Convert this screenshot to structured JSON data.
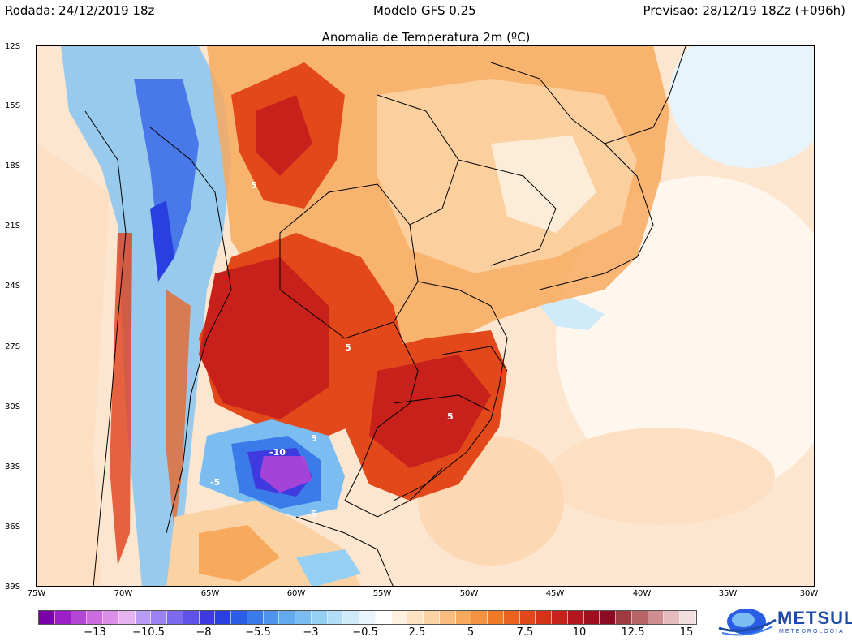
{
  "header": {
    "left": "Rodada: 24/12/2019 18z",
    "center": "Modelo GFS 0.25",
    "right": "Previsao: 28/12/19 18Zz (+096h)"
  },
  "title": "Anomalia de Temperatura 2m (ºC)",
  "lat_labels": [
    "12S",
    "15S",
    "18S",
    "21S",
    "24S",
    "27S",
    "30S",
    "33S",
    "36S",
    "39S"
  ],
  "lon_labels": [
    "75W",
    "70W",
    "65W",
    "60W",
    "55W",
    "50W",
    "45W",
    "40W",
    "35W",
    "30W"
  ],
  "colorbar": {
    "labels": [
      "−13",
      "−10.5",
      "−8",
      "−5.5",
      "−3",
      "−0.5",
      "2.5",
      "5",
      "7.5",
      "10",
      "12.5",
      "15"
    ],
    "colors": [
      "#7a00a8",
      "#9c1fc9",
      "#b545d6",
      "#cc6be0",
      "#dc8fe8",
      "#e6b3f0",
      "#b89bf5",
      "#9a82f2",
      "#7d6aef",
      "#5f52e8",
      "#3f3adf",
      "#2a3fe0",
      "#2a5ce6",
      "#3b7ae9",
      "#4f94ec",
      "#64aaee",
      "#7bbdf0",
      "#95cff3",
      "#b1ddf6",
      "#cfeaf9",
      "#e9f5fc",
      "#ffffff",
      "#fff1e0",
      "#fde3c4",
      "#fbd2a3",
      "#f9be7f",
      "#f7a95e",
      "#f39240",
      "#ef7a2a",
      "#ea6120",
      "#e2481a",
      "#d73218",
      "#c8201a",
      "#b5161d",
      "#9f101f",
      "#8a0b22",
      "#9e3b40",
      "#b86466",
      "#cf8f91",
      "#e4bcbd",
      "#f3dedf"
    ]
  },
  "contour_labels": [
    "5",
    "5",
    "5",
    "-10",
    "-5",
    "-5",
    "5"
  ],
  "logo": {
    "name": "METSUL",
    "subtitle": "METEOROLOGIA"
  }
}
